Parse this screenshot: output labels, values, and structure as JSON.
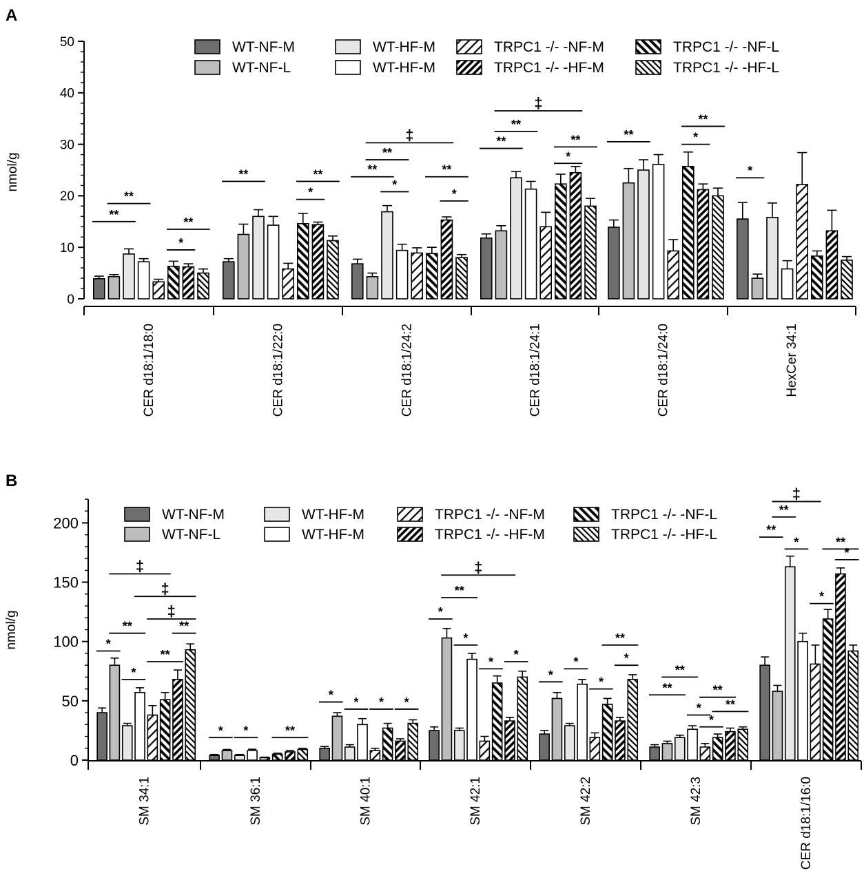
{
  "panel_labels": [
    "A",
    "B"
  ],
  "legend_order": [
    "WT-NF-M",
    "WT-HF-M",
    "TRPC1 -/- -NF-M",
    "TRPC1 -/- -NF-L",
    "WT-NF-L",
    "WT-HF-M",
    "TRPC1 -/- -HF-M",
    "TRPC1 -/- -HF-L"
  ],
  "series_styles": [
    {
      "fill": "#6e6e6e",
      "pattern": "none"
    },
    {
      "fill": "#bdbdbd",
      "pattern": "none"
    },
    {
      "fill": "#e6e6e6",
      "pattern": "none"
    },
    {
      "fill": "#ffffff",
      "pattern": "none"
    },
    {
      "fill": "#ffffff",
      "pattern": "diag-thin-forward"
    },
    {
      "fill": "#ffffff",
      "pattern": "diag-thick-back"
    },
    {
      "fill": "#ffffff",
      "pattern": "diag-thick-forward"
    },
    {
      "fill": "#ffffff",
      "pattern": "diag-thin-back"
    }
  ],
  "chart_data": [
    {
      "type": "bar",
      "panel": "A",
      "title": "",
      "ylabel": "nmol/g",
      "xlabel": "",
      "ylim": [
        0,
        50
      ],
      "yticks": [
        0,
        10,
        20,
        30,
        40,
        50
      ],
      "yticks_text": [
        "0",
        "10",
        "20",
        "30",
        "40",
        "50"
      ],
      "minor_tick": 2,
      "categories": [
        "CER d18:1/18:0",
        "CER d18:1/22:0",
        "CER d18:1/24:2",
        "CER d18:1/24:1",
        "CER d18:1/24:0",
        "HexCer 34:1"
      ],
      "series": [
        {
          "name": "WT-NF-M",
          "values": [
            3.9,
            7.2,
            6.8,
            11.8,
            13.9,
            15.5
          ],
          "errors": [
            0.5,
            0.6,
            0.9,
            0.8,
            1.4,
            3.2
          ]
        },
        {
          "name": "WT-NF-L",
          "values": [
            4.3,
            12.5,
            4.3,
            13.2,
            22.5,
            4.0
          ],
          "errors": [
            0.4,
            2.0,
            0.7,
            1.0,
            2.8,
            0.8
          ]
        },
        {
          "name": "WT-HF-M",
          "values": [
            8.7,
            16.0,
            16.9,
            23.5,
            25.0,
            15.8
          ],
          "errors": [
            1.0,
            1.3,
            1.2,
            1.2,
            2.0,
            2.8
          ]
        },
        {
          "name": "WT-HF-M",
          "values": [
            7.2,
            14.3,
            9.4,
            21.3,
            26.1,
            5.8
          ],
          "errors": [
            0.6,
            1.7,
            1.2,
            1.5,
            1.9,
            1.6
          ]
        },
        {
          "name": "TRPC1 -/- -NF-M",
          "values": [
            3.3,
            5.8,
            8.9,
            14.0,
            9.3,
            22.2
          ],
          "errors": [
            0.5,
            1.1,
            1.0,
            2.8,
            2.2,
            6.2
          ]
        },
        {
          "name": "TRPC1 -/- -NF-L",
          "values": [
            6.3,
            14.6,
            8.8,
            22.3,
            25.7,
            8.3
          ],
          "errors": [
            1.0,
            2.0,
            1.2,
            1.9,
            2.8,
            1.0
          ]
        },
        {
          "name": "TRPC1 -/- -HF-M",
          "values": [
            6.2,
            14.4,
            15.3,
            24.5,
            21.2,
            13.2
          ],
          "errors": [
            0.6,
            0.5,
            0.6,
            1.2,
            1.1,
            4.0
          ]
        },
        {
          "name": "TRPC1 -/- -HF-L",
          "values": [
            5.0,
            11.3,
            8.0,
            18.0,
            20.0,
            7.5
          ],
          "errors": [
            0.8,
            0.9,
            0.6,
            1.5,
            1.5,
            0.7
          ]
        }
      ],
      "annotations": [
        {
          "label": "**",
          "category": 0,
          "from": 0,
          "to": 2,
          "level": 15.0
        },
        {
          "label": "**",
          "category": 0,
          "from": 1,
          "to": 3,
          "level": 18.5
        },
        {
          "label": "*",
          "category": 0,
          "from": 5,
          "to": 6,
          "level": 9.5
        },
        {
          "label": "**",
          "category": 0,
          "from": 5,
          "to": 7,
          "level": 13.5
        },
        {
          "label": "**",
          "category": 1,
          "from": 0,
          "to": 2,
          "level": 22.8
        },
        {
          "label": "*",
          "category": 1,
          "from": 5,
          "to": 6,
          "level": 19.3
        },
        {
          "label": "**",
          "category": 1,
          "from": 5,
          "to": 7,
          "level": 22.8
        },
        {
          "label": "**",
          "category": 2,
          "from": 0,
          "to": 2,
          "level": 23.7
        },
        {
          "label": "*",
          "category": 2,
          "from": 2,
          "to": 3,
          "level": 20.8
        },
        {
          "label": "**",
          "category": 2,
          "from": 1,
          "to": 3,
          "level": 27.0
        },
        {
          "label": "‡",
          "category": 2,
          "from": 1,
          "to": 6,
          "level": 30.3
        },
        {
          "label": "**",
          "category": 2,
          "from": 5,
          "to": 7,
          "level": 23.7
        },
        {
          "label": "*",
          "category": 2,
          "from": 6,
          "to": 7,
          "level": 19.0
        },
        {
          "label": "**",
          "category": 3,
          "from": 0,
          "to": 2,
          "level": 29.2
        },
        {
          "label": "**",
          "category": 3,
          "from": 1,
          "to": 3,
          "level": 32.5
        },
        {
          "label": "‡",
          "category": 3,
          "from": 1,
          "to": 6,
          "level": 36.5
        },
        {
          "label": "*",
          "category": 3,
          "from": 5,
          "to": 6,
          "level": 26.3
        },
        {
          "label": "**",
          "category": 3,
          "from": 5,
          "to": 7,
          "level": 29.5
        },
        {
          "label": "**",
          "category": 4,
          "from": 0,
          "to": 2,
          "level": 30.5
        },
        {
          "label": "*",
          "category": 4,
          "from": 5,
          "to": 6,
          "level": 30.0
        },
        {
          "label": "**",
          "category": 4,
          "from": 5,
          "to": 7,
          "level": 33.5
        },
        {
          "label": "*",
          "category": 5,
          "from": 0,
          "to": 1,
          "level": 23.5
        }
      ]
    },
    {
      "type": "bar",
      "panel": "B",
      "title": "",
      "ylabel": "nmol/g",
      "xlabel": "",
      "ylim": [
        0,
        220
      ],
      "yticks": [
        0,
        50,
        100,
        150,
        200
      ],
      "yticks_text": [
        "0",
        "50",
        "100",
        "150",
        "200"
      ],
      "minor_tick": 10,
      "categories": [
        "SM 34:1",
        "SM 36:1",
        "SM 40:1",
        "SM 42:1",
        "SM 42:2",
        "SM 42:3",
        "CER d18:1/16:0"
      ],
      "series": [
        {
          "name": "WT-NF-M",
          "values": [
            40,
            4,
            10,
            25,
            22,
            11,
            80
          ],
          "errors": [
            4,
            0.8,
            1.5,
            3,
            3,
            2,
            7
          ]
        },
        {
          "name": "WT-NF-L",
          "values": [
            80,
            8,
            37,
            103,
            52,
            14,
            58
          ],
          "errors": [
            6,
            1,
            3,
            8,
            5,
            2,
            5
          ]
        },
        {
          "name": "WT-HF-M",
          "values": [
            29,
            4,
            11,
            25,
            29,
            19,
            163
          ],
          "errors": [
            2,
            0.8,
            2,
            2,
            2,
            2,
            9
          ]
        },
        {
          "name": "WT-HF-M",
          "values": [
            57,
            8,
            30,
            85,
            64,
            26,
            100
          ],
          "errors": [
            4,
            1.2,
            5,
            5,
            4,
            3,
            7
          ]
        },
        {
          "name": "TRPC1 -/- -NF-M",
          "values": [
            38,
            2,
            8,
            16,
            19,
            11,
            81
          ],
          "errors": [
            8,
            0.5,
            2,
            4,
            4,
            3,
            16
          ]
        },
        {
          "name": "TRPC1 -/- -NF-L",
          "values": [
            51,
            5,
            27,
            65,
            47,
            19,
            119
          ],
          "errors": [
            6,
            0.8,
            4,
            6,
            5,
            3,
            8
          ]
        },
        {
          "name": "TRPC1 -/- -HF-M",
          "values": [
            68,
            7,
            16,
            33,
            33,
            24,
            157
          ],
          "errors": [
            8,
            1,
            2,
            3,
            3,
            3,
            5
          ]
        },
        {
          "name": "TRPC1 -/- -HF-L",
          "values": [
            93,
            9,
            31,
            70,
            68,
            26,
            92
          ],
          "errors": [
            5,
            1,
            3,
            5,
            4,
            2,
            5
          ]
        }
      ],
      "annotations": [
        {
          "label": "*",
          "category": 0,
          "from": 0,
          "to": 1,
          "level": 92
        },
        {
          "label": "**",
          "category": 0,
          "from": 1,
          "to": 3,
          "level": 107
        },
        {
          "label": "*",
          "category": 0,
          "from": 2,
          "to": 3,
          "level": 68
        },
        {
          "label": "‡",
          "category": 0,
          "from": 1,
          "to": 5,
          "level": 157
        },
        {
          "label": "‡",
          "category": 0,
          "from": 3,
          "to": 7,
          "level": 138
        },
        {
          "label": "‡",
          "category": 0,
          "from": 4,
          "to": 7,
          "level": 119
        },
        {
          "label": "**",
          "category": 0,
          "from": 6,
          "to": 7,
          "level": 107
        },
        {
          "label": "**",
          "category": 0,
          "from": 4,
          "to": 6,
          "level": 83
        },
        {
          "label": "*",
          "category": 1,
          "from": 0,
          "to": 1,
          "level": 19
        },
        {
          "label": "*",
          "category": 1,
          "from": 2,
          "to": 3,
          "level": 19
        },
        {
          "label": "**",
          "category": 1,
          "from": 5,
          "to": 7,
          "level": 19
        },
        {
          "label": "*",
          "category": 2,
          "from": 0,
          "to": 1,
          "level": 49
        },
        {
          "label": "*",
          "category": 2,
          "from": 2,
          "to": 3,
          "level": 43
        },
        {
          "label": "*",
          "category": 2,
          "from": 4,
          "to": 5,
          "level": 43
        },
        {
          "label": "*",
          "category": 2,
          "from": 6,
          "to": 7,
          "level": 43
        },
        {
          "label": "*",
          "category": 3,
          "from": 0,
          "to": 1,
          "level": 119
        },
        {
          "label": "**",
          "category": 3,
          "from": 1,
          "to": 3,
          "level": 137
        },
        {
          "label": "‡",
          "category": 3,
          "from": 1,
          "to": 6,
          "level": 156
        },
        {
          "label": "*",
          "category": 3,
          "from": 2,
          "to": 3,
          "level": 97
        },
        {
          "label": "*",
          "category": 3,
          "from": 4,
          "to": 5,
          "level": 77
        },
        {
          "label": "*",
          "category": 3,
          "from": 6,
          "to": 7,
          "level": 83
        },
        {
          "label": "*",
          "category": 4,
          "from": 0,
          "to": 1,
          "level": 66
        },
        {
          "label": "*",
          "category": 4,
          "from": 2,
          "to": 3,
          "level": 77
        },
        {
          "label": "*",
          "category": 4,
          "from": 4,
          "to": 5,
          "level": 60
        },
        {
          "label": "**",
          "category": 4,
          "from": 5,
          "to": 7,
          "level": 97
        },
        {
          "label": "*",
          "category": 4,
          "from": 6,
          "to": 7,
          "level": 80
        },
        {
          "label": "**",
          "category": 5,
          "from": 0,
          "to": 2,
          "level": 55
        },
        {
          "label": "**",
          "category": 5,
          "from": 1,
          "to": 3,
          "level": 70
        },
        {
          "label": "*",
          "category": 5,
          "from": 3,
          "to": 4,
          "level": 38
        },
        {
          "label": "*",
          "category": 5,
          "from": 4,
          "to": 5,
          "level": 28
        },
        {
          "label": "**",
          "category": 5,
          "from": 4,
          "to": 6,
          "level": 53
        },
        {
          "label": "**",
          "category": 5,
          "from": 5,
          "to": 7,
          "level": 41
        },
        {
          "label": "**",
          "category": 6,
          "from": 0,
          "to": 1,
          "level": 188
        },
        {
          "label": "**",
          "category": 6,
          "from": 1,
          "to": 2,
          "level": 205
        },
        {
          "label": "‡",
          "category": 6,
          "from": 1,
          "to": 4,
          "level": 218
        },
        {
          "label": "*",
          "category": 6,
          "from": 2,
          "to": 3,
          "level": 178
        },
        {
          "label": "*",
          "category": 6,
          "from": 4,
          "to": 5,
          "level": 132
        },
        {
          "label": "**",
          "category": 6,
          "from": 5,
          "to": 7,
          "level": 178
        },
        {
          "label": "*",
          "category": 6,
          "from": 6,
          "to": 7,
          "level": 169
        }
      ]
    }
  ]
}
